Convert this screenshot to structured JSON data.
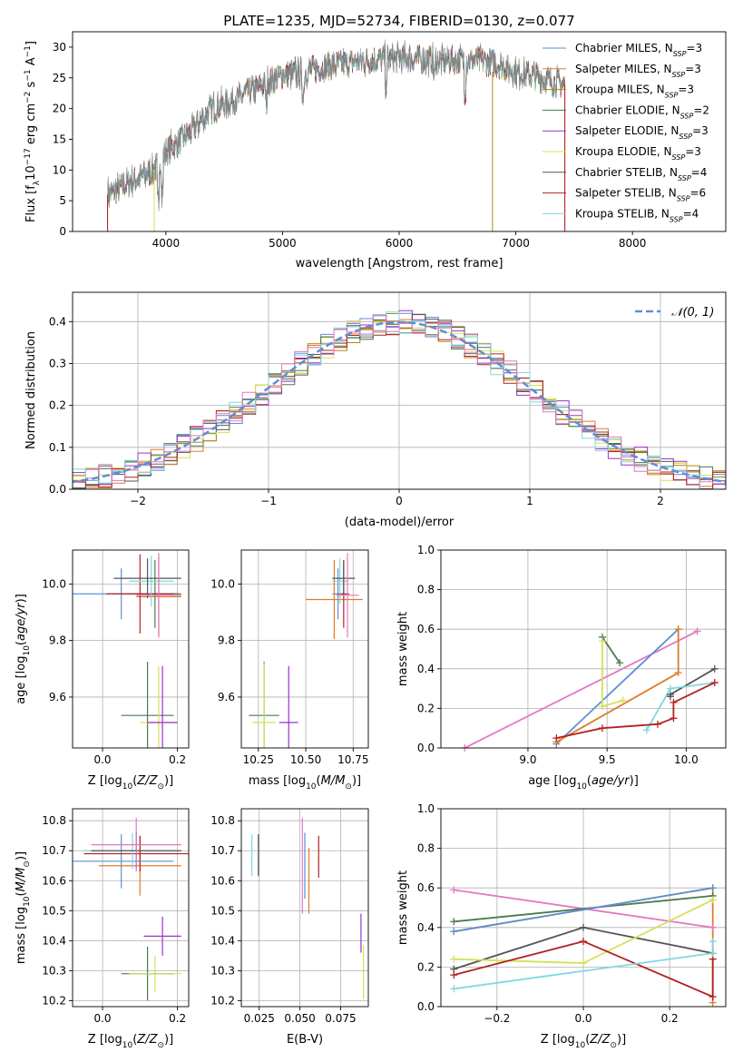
{
  "figure_title": "PLATE=1235, MJD=52734, FIBERID=0130, z=0.077",
  "models": [
    {
      "name": "Chabrier MILES",
      "nssp": "3",
      "color": "#5b8fd6"
    },
    {
      "name": "Salpeter MILES",
      "nssp": "3",
      "color": "#e07b2a"
    },
    {
      "name": "Kroupa MILES",
      "nssp": "3",
      "color": "#b8860b"
    },
    {
      "name": "Chabrier ELODIE",
      "nssp": "2",
      "color": "#4a7a4f"
    },
    {
      "name": "Salpeter ELODIE",
      "nssp": "3",
      "color": "#9932cc"
    },
    {
      "name": "Kroupa ELODIE",
      "nssp": "3",
      "color": "#d4e157"
    },
    {
      "name": "Chabrier STELIB",
      "nssp": "4",
      "color": "#555555"
    },
    {
      "name": "Salpeter STELIB",
      "nssp": "6",
      "color": "#b22222"
    },
    {
      "name": "Kroupa STELIB",
      "nssp": "4",
      "color": "#7fd8e0"
    }
  ],
  "chart_data": [
    {
      "type": "line",
      "id": "spectrum",
      "xlabel": "wavelength [Angstrom, rest frame]",
      "ylabel": "Flux [f_λ 10^-17 erg cm^-2 s^-1 A^-1]",
      "xlim": [
        3200,
        8800
      ],
      "ylim": [
        0,
        32.5
      ],
      "xticks": [
        4000,
        5000,
        6000,
        7000,
        8000
      ],
      "yticks": [
        0,
        5,
        10,
        15,
        20,
        25,
        30
      ],
      "continuum": {
        "x": [
          3500,
          3700,
          3900,
          4000,
          4200,
          4400,
          4600,
          4800,
          5000,
          5200,
          5400,
          5600,
          5800,
          6000,
          6200,
          6400,
          6600,
          6800,
          7000,
          7200,
          7400
        ],
        "y": [
          6,
          8,
          10,
          13,
          16,
          20,
          21.5,
          23.5,
          25.5,
          26,
          27,
          27.5,
          28,
          28.2,
          28,
          27.8,
          28,
          27.5,
          26,
          25,
          24
        ]
      },
      "series_range": [
        3500,
        7420
      ]
    },
    {
      "type": "bar",
      "id": "residuals",
      "xlabel": "(data-model)/error",
      "ylabel": "Normed distribution",
      "xlim": [
        -2.5,
        2.5
      ],
      "ylim": [
        0,
        0.47
      ],
      "xticks": [
        -2,
        -1,
        0,
        1,
        2
      ],
      "xticklabels": [
        "−2",
        "−1",
        "0",
        "1",
        "2"
      ],
      "yticks": [
        0,
        0.1,
        0.2,
        0.3,
        0.4
      ],
      "yticklabels": [
        "0.0",
        "0.1",
        "0.2",
        "0.3",
        "0.4"
      ],
      "bin_width": 0.1,
      "legend": "𝒩(0, 1)",
      "reference_curve": "gaussian(0,1)"
    },
    {
      "type": "scatter",
      "id": "age-vs-z",
      "xlabel": "Z [log10(Z/Z⊙)]",
      "ylabel": "age  [log10(age/yr)]",
      "xlim": [
        -0.08,
        0.23
      ],
      "ylim": [
        9.42,
        10.12
      ],
      "xticks": [
        0.0,
        0.2
      ],
      "xticklabels": [
        "0.0",
        "0.2"
      ],
      "yticks": [
        9.6,
        9.8,
        10.0
      ],
      "yticklabels": [
        "9.6",
        "9.8",
        "10.0"
      ],
      "points": [
        {
          "x": 0.05,
          "y": 9.965,
          "xerr": 0.15,
          "yerr": 0.09,
          "color": "#5b8fd6"
        },
        {
          "x": 0.15,
          "y": 9.955,
          "xerr": 0.06,
          "yerr": 0.14,
          "color": "#e07b2a"
        },
        {
          "x": 0.14,
          "y": 9.965,
          "xerr": 0.07,
          "yerr": 0.12,
          "color": "#4a7a4f"
        },
        {
          "x": 0.1,
          "y": 9.965,
          "xerr": 0.09,
          "yerr": 0.14,
          "color": "#b22222"
        },
        {
          "x": 0.13,
          "y": 10.01,
          "xerr": 0.06,
          "yerr": 0.09,
          "color": "#7fd8e0"
        },
        {
          "x": 0.12,
          "y": 10.02,
          "xerr": 0.09,
          "yerr": 0.07,
          "color": "#555555"
        },
        {
          "x": 0.15,
          "y": 9.96,
          "xerr": 0.06,
          "yerr": 0.15,
          "color": "#e377c2"
        },
        {
          "x": 0.12,
          "y": 9.535,
          "xerr": 0.07,
          "yerr": 0.19,
          "color": "#4a7a4f"
        },
        {
          "x": 0.15,
          "y": 9.51,
          "xerr": 0.05,
          "yerr": 0.2,
          "color": "#d4e157"
        },
        {
          "x": 0.16,
          "y": 9.51,
          "xerr": 0.04,
          "yerr": 0.2,
          "color": "#9932cc"
        }
      ]
    },
    {
      "type": "scatter",
      "id": "age-vs-mass",
      "xlabel": "mass [log10(M/M⊙)]",
      "ylabel": "",
      "xlim": [
        10.16,
        10.83
      ],
      "ylim": [
        9.42,
        10.12
      ],
      "xticks": [
        10.25,
        10.5,
        10.75
      ],
      "xticklabels": [
        "10.25",
        "10.50",
        "10.75"
      ],
      "yticks": [
        9.6,
        9.8,
        10.0
      ],
      "yticklabels": [
        "9.6",
        "9.8",
        "10.0"
      ],
      "points": [
        {
          "x": 10.67,
          "y": 9.965,
          "xerr": 0.03,
          "yerr": 0.09,
          "color": "#5b8fd6"
        },
        {
          "x": 10.65,
          "y": 9.945,
          "xerr": 0.15,
          "yerr": 0.14,
          "color": "#e07b2a"
        },
        {
          "x": 10.7,
          "y": 9.965,
          "xerr": 0.03,
          "yerr": 0.12,
          "color": "#b22222"
        },
        {
          "x": 10.68,
          "y": 10.01,
          "xerr": 0.04,
          "yerr": 0.08,
          "color": "#7fd8e0"
        },
        {
          "x": 10.7,
          "y": 10.02,
          "xerr": 0.06,
          "yerr": 0.06,
          "color": "#555555"
        },
        {
          "x": 10.72,
          "y": 9.96,
          "xerr": 0.06,
          "yerr": 0.15,
          "color": "#e377c2"
        },
        {
          "x": 10.28,
          "y": 9.535,
          "xerr": 0.08,
          "yerr": 0.19,
          "color": "#4a7a4f"
        },
        {
          "x": 10.28,
          "y": 9.51,
          "xerr": 0.06,
          "yerr": 0.21,
          "color": "#d4e157"
        },
        {
          "x": 10.41,
          "y": 9.51,
          "xerr": 0.05,
          "yerr": 0.2,
          "color": "#9932cc"
        }
      ]
    },
    {
      "type": "line",
      "id": "weight-vs-age",
      "xlabel": "age  [log10(age/yr)]",
      "ylabel": "mass weight",
      "xlim": [
        8.45,
        10.25
      ],
      "ylim": [
        0,
        1
      ],
      "xticks": [
        9.0,
        9.5,
        10.0
      ],
      "xticklabels": [
        "9.0",
        "9.5",
        "10.0"
      ],
      "yticks": [
        0,
        0.2,
        0.4,
        0.6,
        0.8,
        1.0
      ],
      "yticklabels": [
        "0.0",
        "0.2",
        "0.4",
        "0.6",
        "0.8",
        "1.0"
      ],
      "series": [
        {
          "color": "#e377c2",
          "x": [
            8.6,
            10.07
          ],
          "y": [
            0.0,
            0.59
          ]
        },
        {
          "color": "#5b8fd6",
          "x": [
            9.18,
            9.95
          ],
          "y": [
            0.02,
            0.6
          ]
        },
        {
          "color": "#e07b2a",
          "x": [
            9.18,
            9.95,
            9.95
          ],
          "y": [
            0.03,
            0.38,
            0.6
          ]
        },
        {
          "color": "#4a7a4f",
          "x": [
            9.47,
            9.58
          ],
          "y": [
            0.56,
            0.43
          ]
        },
        {
          "color": "#d4e157",
          "x": [
            9.47,
            9.47,
            9.6
          ],
          "y": [
            0.54,
            0.21,
            0.24
          ]
        },
        {
          "color": "#555555",
          "x": [
            9.9,
            9.9,
            10.18
          ],
          "y": [
            0.26,
            0.27,
            0.4
          ]
        },
        {
          "color": "#7fd8e0",
          "x": [
            9.75,
            9.9,
            10.18
          ],
          "y": [
            0.09,
            0.3,
            0.33
          ]
        },
        {
          "color": "#b22222",
          "x": [
            9.18,
            9.47,
            9.82,
            9.92,
            9.92,
            10.18
          ],
          "y": [
            0.05,
            0.1,
            0.12,
            0.15,
            0.23,
            0.33
          ]
        }
      ]
    },
    {
      "type": "scatter",
      "id": "mass-vs-z",
      "xlabel": "Z [log10(Z/Z⊙)]",
      "ylabel": "mass [log10(M/M⊙)]",
      "xlim": [
        -0.08,
        0.23
      ],
      "ylim": [
        10.18,
        10.84
      ],
      "xticks": [
        0.0,
        0.2
      ],
      "xticklabels": [
        "0.0",
        "0.2"
      ],
      "yticks": [
        10.2,
        10.3,
        10.4,
        10.5,
        10.6,
        10.7,
        10.8
      ],
      "yticklabels": [
        "10.2",
        "10.3",
        "10.4",
        "10.5",
        "10.6",
        "10.7",
        "10.8"
      ],
      "points": [
        {
          "x": 0.05,
          "y": 10.665,
          "xerr": 0.14,
          "yerr": 0.09,
          "color": "#5b8fd6"
        },
        {
          "x": 0.1,
          "y": 10.65,
          "xerr": 0.11,
          "yerr": 0.1,
          "color": "#e07b2a"
        },
        {
          "x": 0.1,
          "y": 10.69,
          "xerr": 0.15,
          "yerr": 0.06,
          "color": "#b22222"
        },
        {
          "x": 0.08,
          "y": 10.7,
          "xerr": 0.13,
          "yerr": 0.06,
          "color": "#7fd8e0"
        },
        {
          "x": 0.09,
          "y": 10.7,
          "xerr": 0.12,
          "yerr": 0.06,
          "color": "#555555"
        },
        {
          "x": 0.09,
          "y": 10.72,
          "xerr": 0.12,
          "yerr": 0.09,
          "color": "#e377c2"
        },
        {
          "x": 0.16,
          "y": 10.415,
          "xerr": 0.05,
          "yerr": 0.065,
          "color": "#9932cc"
        },
        {
          "x": 0.12,
          "y": 10.29,
          "xerr": 0.07,
          "yerr": 0.09,
          "color": "#4a7a4f"
        },
        {
          "x": 0.14,
          "y": 10.29,
          "xerr": 0.07,
          "yerr": 0.06,
          "color": "#d4e157"
        }
      ]
    },
    {
      "type": "scatter",
      "id": "mass-vs-ebv",
      "xlabel": "E(B-V)",
      "ylabel": "",
      "xlim": [
        0.014,
        0.092
      ],
      "ylim": [
        10.18,
        10.84
      ],
      "xticks": [
        0.025,
        0.05,
        0.075
      ],
      "xticklabels": [
        "0.025",
        "0.050",
        "0.075"
      ],
      "yticks": [
        10.2,
        10.3,
        10.4,
        10.5,
        10.6,
        10.7,
        10.8
      ],
      "yticklabels": [
        "10.2",
        "10.3",
        "10.4",
        "10.5",
        "10.6",
        "10.7",
        "10.8"
      ],
      "points": [
        {
          "x": 0.0205,
          "y": 10.685,
          "yerr": 0.07,
          "color": "#7fd8e0"
        },
        {
          "x": 0.0245,
          "y": 10.685,
          "yerr": 0.07,
          "color": "#555555"
        },
        {
          "x": 0.0515,
          "y": 10.65,
          "yerr": 0.16,
          "color": "#e377c2"
        },
        {
          "x": 0.053,
          "y": 10.65,
          "yerr": 0.11,
          "color": "#5b8fd6"
        },
        {
          "x": 0.0555,
          "y": 10.6,
          "yerr": 0.11,
          "color": "#e07b2a"
        },
        {
          "x": 0.0615,
          "y": 10.68,
          "yerr": 0.07,
          "color": "#b22222"
        },
        {
          "x": 0.0875,
          "y": 10.425,
          "yerr": 0.065,
          "color": "#9932cc"
        },
        {
          "x": 0.089,
          "y": 10.295,
          "yerr": 0.09,
          "color": "#d4e157"
        }
      ]
    },
    {
      "type": "line",
      "id": "weight-vs-z",
      "xlabel": "Z [log10(Z/Z⊙)]",
      "ylabel": "mass weight",
      "xlim": [
        -0.33,
        0.33
      ],
      "ylim": [
        0,
        1
      ],
      "xticks": [
        -0.2,
        0.0,
        0.2
      ],
      "xticklabels": [
        "−0.2",
        "0.0",
        "0.2"
      ],
      "yticks": [
        0,
        0.2,
        0.4,
        0.6,
        0.8,
        1.0
      ],
      "yticklabels": [
        "0.0",
        "0.2",
        "0.4",
        "0.6",
        "0.8",
        "1.0"
      ],
      "series": [
        {
          "color": "#e377c2",
          "x": [
            -0.3,
            0.3
          ],
          "y": [
            0.59,
            0.4
          ]
        },
        {
          "color": "#4a7a4f",
          "x": [
            -0.3,
            0.3
          ],
          "y": [
            0.43,
            0.56
          ]
        },
        {
          "color": "#e07b2a",
          "x": [
            -0.3,
            0.3,
            0.3
          ],
          "y": [
            0.38,
            0.6,
            0.02
          ]
        },
        {
          "color": "#5b8fd6",
          "x": [
            -0.3,
            0.3
          ],
          "y": [
            0.38,
            0.6
          ]
        },
        {
          "color": "#555555",
          "x": [
            -0.3,
            0.0,
            0.3
          ],
          "y": [
            0.19,
            0.4,
            0.27
          ]
        },
        {
          "color": "#d4e157",
          "x": [
            -0.3,
            0.0,
            0.3
          ],
          "y": [
            0.24,
            0.22,
            0.54
          ]
        },
        {
          "color": "#b22222",
          "x": [
            -0.3,
            0.0,
            0.3,
            0.3
          ],
          "y": [
            0.16,
            0.33,
            0.05,
            0.24
          ]
        },
        {
          "color": "#7fd8e0",
          "x": [
            -0.3,
            0.3,
            0.3
          ],
          "y": [
            0.09,
            0.27,
            0.33
          ]
        }
      ]
    }
  ]
}
